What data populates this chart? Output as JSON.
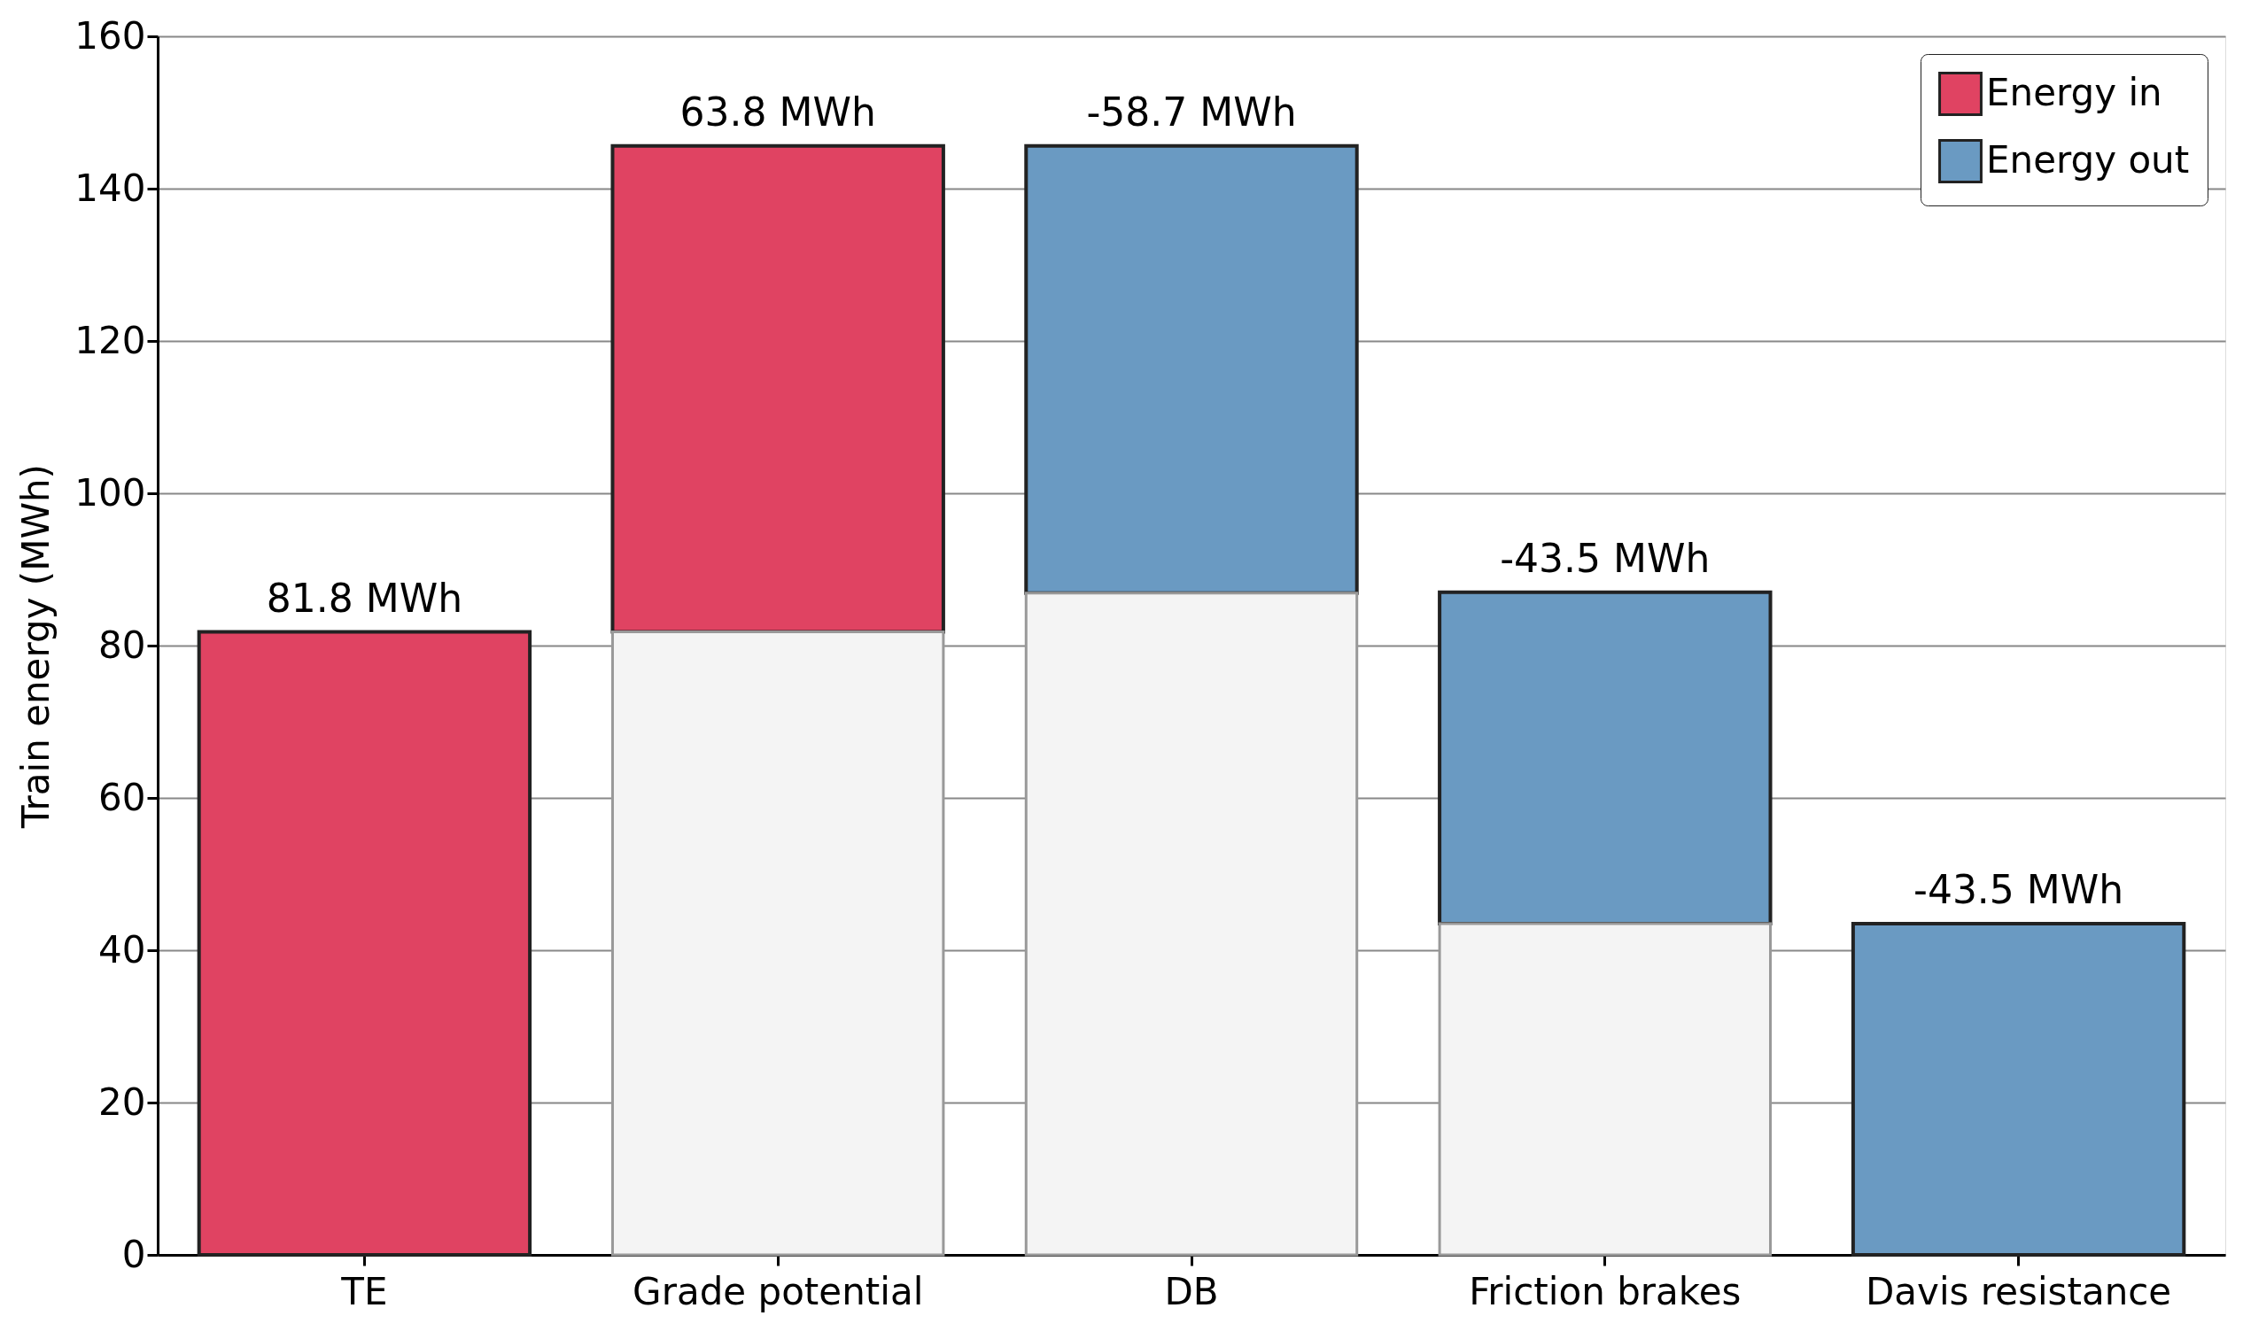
{
  "chart_data": {
    "type": "bar",
    "ylabel": "Train energy (MWh)",
    "categories": [
      "TE",
      "Grade potential",
      "DB",
      "Friction brakes",
      "Davis resistance"
    ],
    "series": [
      {
        "color": "#f4f4f4",
        "values": [
          null,
          81.8,
          86.9,
          43.5,
          null
        ],
        "base": [
          null,
          0,
          0,
          0,
          null
        ]
      },
      {
        "name": "Energy in",
        "color": "#e04362",
        "values": [
          81.8,
          63.8,
          null,
          null,
          null
        ],
        "base": [
          0,
          81.8,
          null,
          null,
          null
        ],
        "value_labels": [
          "81.8 MWh",
          "63.8 MWh",
          null,
          null,
          null
        ]
      },
      {
        "name": "Energy out",
        "color": "#6a9ac2",
        "values": [
          null,
          null,
          -58.7,
          -43.5,
          -43.5
        ],
        "base": [
          null,
          null,
          145.6,
          87.0,
          43.5
        ],
        "value_labels": [
          null,
          null,
          "-58.7 MWh",
          "-43.5 MWh",
          "-43.5 MWh"
        ]
      }
    ],
    "ylim": [
      0,
      160
    ],
    "yticks": [
      0,
      20,
      40,
      60,
      80,
      100,
      120,
      140,
      160
    ],
    "grid": "y",
    "legend": "top right"
  }
}
